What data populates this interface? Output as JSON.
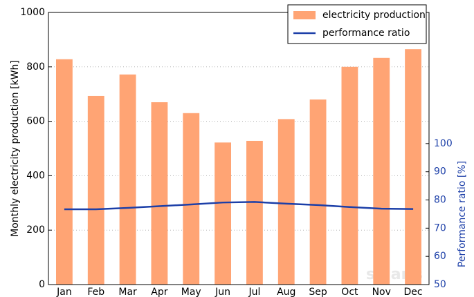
{
  "chart_data": {
    "type": "bar-line",
    "categories": [
      "Jan",
      "Feb",
      "Mar",
      "Apr",
      "May",
      "Jun",
      "Jul",
      "Aug",
      "Sep",
      "Oct",
      "Nov",
      "Dec"
    ],
    "series": [
      {
        "name": "electricity production",
        "color": "#ffa474",
        "type": "bar",
        "values": [
          828,
          693,
          772,
          670,
          630,
          522,
          528,
          608,
          680,
          800,
          833,
          865
        ]
      },
      {
        "name": "performance ratio",
        "color": "#1c3fa8",
        "type": "line",
        "axis": "y2",
        "values": [
          76.7,
          76.7,
          77.2,
          77.8,
          78.4,
          79.1,
          79.3,
          78.7,
          78.2,
          77.5,
          76.9,
          76.8
        ]
      }
    ],
    "ylabel": "Monthly electricity production [kWh]",
    "y2label": "Performance ratio [%]",
    "ylim": [
      0,
      1000
    ],
    "yticks": [
      0,
      200,
      400,
      600,
      800,
      1000
    ],
    "y2lim": [
      50,
      146.5
    ],
    "y2ticks": [
      50,
      60,
      70,
      80,
      90,
      100
    ],
    "y2color": "#1c3fa8",
    "grid": true,
    "legend": "upper right",
    "watermark": "solaris"
  }
}
